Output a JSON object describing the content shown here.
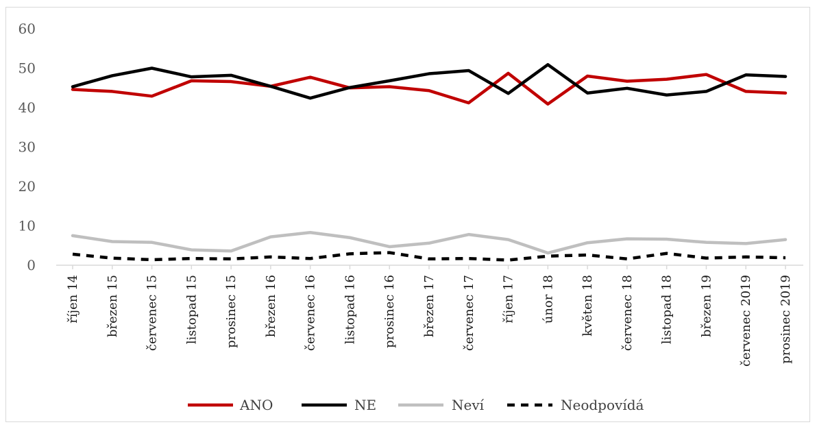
{
  "chart_data": {
    "type": "line",
    "title": "",
    "xlabel": "",
    "ylabel": "",
    "ylim": [
      0,
      60
    ],
    "yticks": [
      0,
      10,
      20,
      30,
      40,
      50,
      60
    ],
    "grid": false,
    "legend_position": "bottom",
    "categories": [
      "říjen 14",
      "březen 15",
      "červenec 15",
      "listopad 15",
      "prosinec 15",
      "březen 16",
      "červenec 16",
      "listopad 16",
      "prosinec 16",
      "březen 17",
      "červenec 17",
      "říjen 17",
      "únor 18",
      "květen 18",
      "červenec 18",
      "listopad 18",
      "březen 19",
      "červenec 2019",
      "prosinec 2019"
    ],
    "series": [
      {
        "name": "ANO",
        "color": "#c00000",
        "dash": "solid",
        "values": [
          44.6,
          44.1,
          42.9,
          46.8,
          46.6,
          45.4,
          47.7,
          45.0,
          45.3,
          44.3,
          41.2,
          48.7,
          40.9,
          48.0,
          46.7,
          47.2,
          48.4,
          44.1,
          43.7
        ]
      },
      {
        "name": "NE",
        "color": "#000000",
        "dash": "solid",
        "values": [
          45.3,
          48.1,
          50.0,
          47.8,
          48.2,
          45.4,
          42.4,
          45.1,
          46.8,
          48.6,
          49.4,
          43.6,
          50.9,
          43.7,
          44.9,
          43.2,
          44.1,
          48.3,
          47.9
        ]
      },
      {
        "name": "Neví",
        "color": "#bfbfbf",
        "dash": "solid",
        "values": [
          7.5,
          6.0,
          5.8,
          3.9,
          3.6,
          7.2,
          8.3,
          7.0,
          4.7,
          5.6,
          7.8,
          6.5,
          3.1,
          5.7,
          6.7,
          6.6,
          5.8,
          5.5,
          6.5
        ]
      },
      {
        "name": "Neodpovídá",
        "color": "#000000",
        "dash": "dashed",
        "values": [
          2.8,
          1.8,
          1.4,
          1.7,
          1.6,
          2.1,
          1.7,
          2.9,
          3.2,
          1.6,
          1.7,
          1.3,
          2.3,
          2.6,
          1.6,
          3.0,
          1.8,
          2.1,
          1.9
        ]
      }
    ]
  }
}
